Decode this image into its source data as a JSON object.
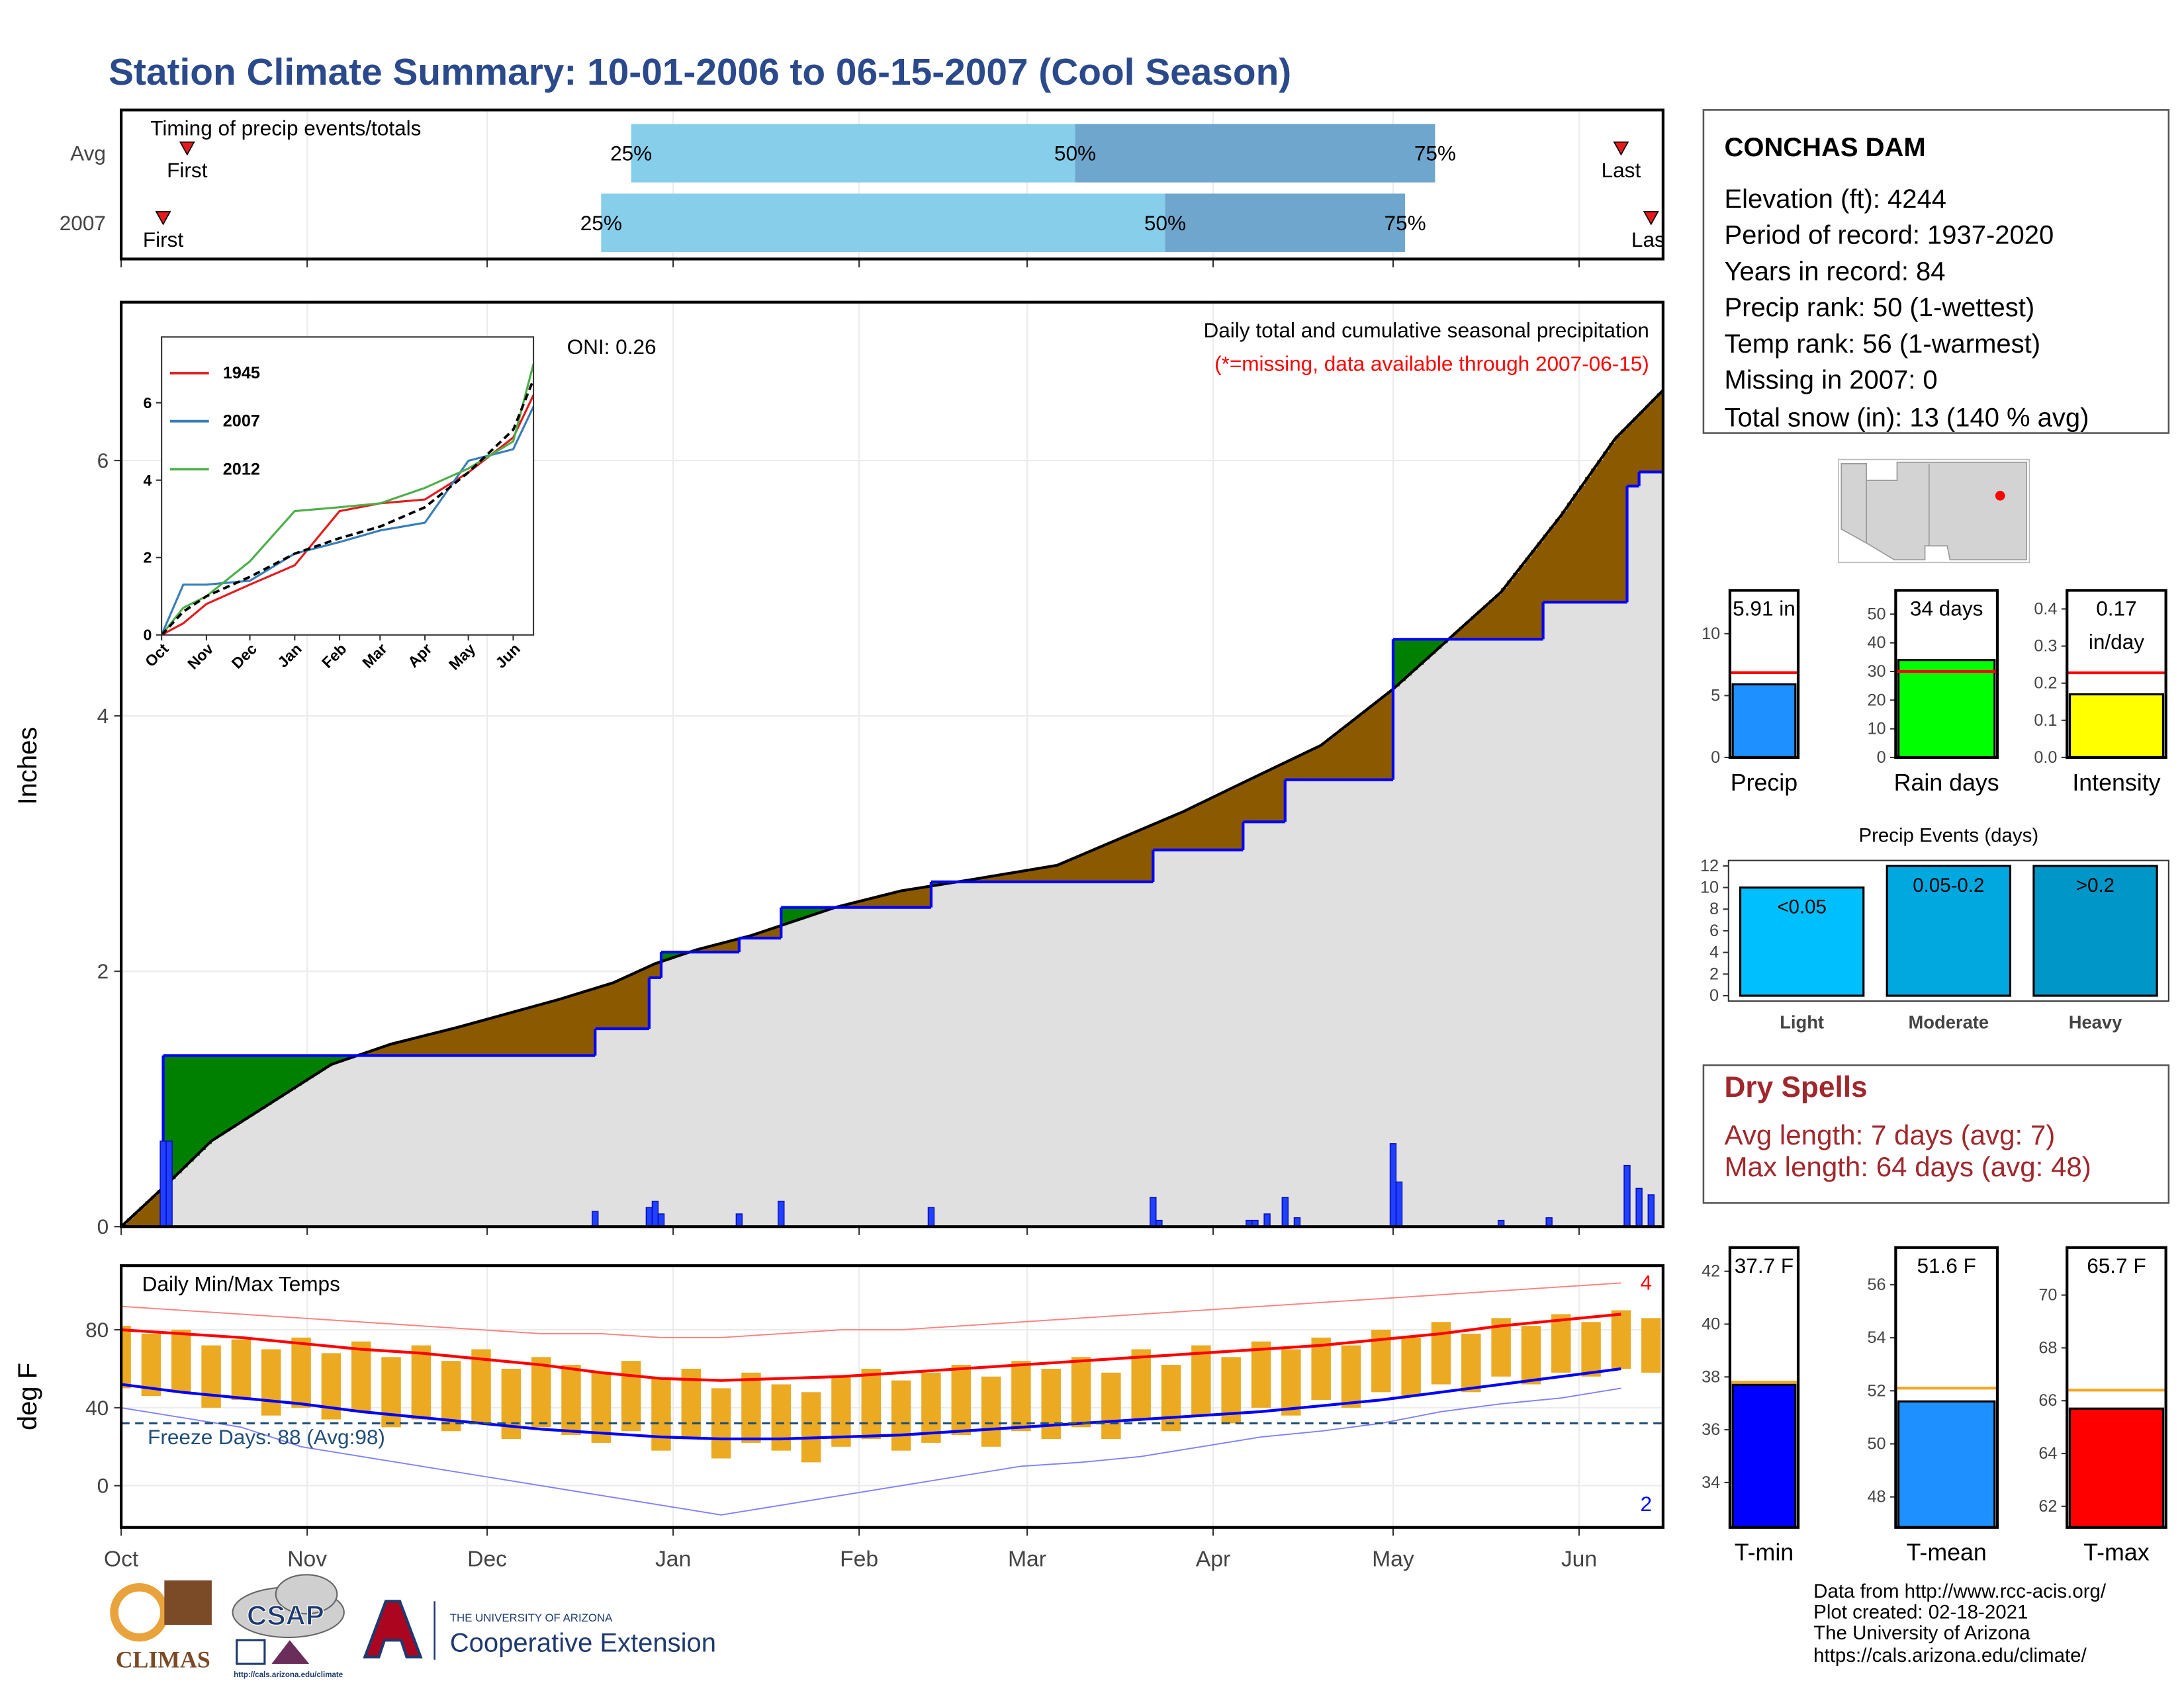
{
  "title": "Station Climate Summary: 10-01-2006 to 06-15-2007 (Cool Season)",
  "chart_data": [
    {
      "type": "timing",
      "title": "Timing of precip events/totals",
      "xlim": [
        0,
        257
      ],
      "categories": [
        "Avg",
        "2007"
      ],
      "first": [
        11,
        7
      ],
      "q25": [
        85,
        80
      ],
      "q50": [
        159,
        174
      ],
      "q75": [
        219,
        214
      ],
      "last": [
        250,
        255
      ],
      "first_label": "First",
      "last_label": "Last",
      "quantile_labels": [
        "25%",
        "50%",
        "75%"
      ],
      "colors": [
        "#87ceeb",
        "#6fa6cd"
      ],
      "marker_color": "#e41a1c"
    },
    {
      "type": "cumulative",
      "title": "Daily total and cumulative seasonal precipitation",
      "subtitle": "(*=missing, data available through 2007-06-15)",
      "y_label": "Inches",
      "annotation": "ONI: 0.26",
      "xlim": [
        0,
        257
      ],
      "ylim": [
        0,
        7.24
      ],
      "yticks": [
        0,
        2,
        4,
        6
      ],
      "grid": true,
      "average": {
        "x": [
          0,
          8,
          15,
          26,
          35,
          45,
          56,
          73,
          82,
          89,
          96,
          105,
          119,
          130,
          142,
          156,
          165,
          177,
          188,
          200,
          212,
          221,
          230,
          240,
          249,
          257
        ],
        "values": [
          0,
          0.35,
          0.67,
          1.0,
          1.27,
          1.43,
          1.56,
          1.78,
          1.91,
          2.06,
          2.17,
          2.28,
          2.5,
          2.63,
          2.72,
          2.83,
          3.01,
          3.25,
          3.5,
          3.77,
          4.21,
          4.59,
          4.97,
          5.57,
          6.17,
          6.55
        ],
        "color": "#000000"
      },
      "season": {
        "x": [
          0,
          7,
          79,
          88,
          90,
          103,
          110,
          135,
          172,
          187,
          194,
          212,
          237,
          251,
          253
        ],
        "values": [
          0,
          1.34,
          1.55,
          1.95,
          2.15,
          2.26,
          2.5,
          2.7,
          2.95,
          3.17,
          3.5,
          4.6,
          4.89,
          5.8,
          5.91
        ],
        "color": "#0000ff"
      },
      "daily": {
        "x": [
          7,
          8,
          79,
          88,
          89,
          90,
          103,
          110,
          135,
          172,
          173,
          188,
          189,
          191,
          194,
          196,
          212,
          213,
          230,
          238,
          251,
          253,
          255
        ],
        "values": [
          0.67,
          0.67,
          0.12,
          0.15,
          0.2,
          0.1,
          0.1,
          0.2,
          0.15,
          0.23,
          0.05,
          0.05,
          0.05,
          0.1,
          0.23,
          0.07,
          0.65,
          0.35,
          0.05,
          0.07,
          0.48,
          0.3,
          0.25
        ],
        "color": "#2040ff"
      },
      "above_color": "#008000",
      "below_color": "#8b5a00",
      "fill_color": "#e0e0e0"
    },
    {
      "type": "line",
      "xlim": [
        0,
        257
      ],
      "ylim": [
        0,
        7.7
      ],
      "yticks": [
        0,
        2,
        4,
        6
      ],
      "xticks": [
        {
          "value": 0,
          "label": "Oct"
        },
        {
          "value": 31,
          "label": "Nov"
        },
        {
          "value": 61,
          "label": "Dec"
        },
        {
          "value": 92,
          "label": "Jan"
        },
        {
          "value": 123,
          "label": "Feb"
        },
        {
          "value": 151,
          "label": "Mar"
        },
        {
          "value": 182,
          "label": "Apr"
        },
        {
          "value": 212,
          "label": "May"
        },
        {
          "value": 243,
          "label": "Jun"
        }
      ],
      "x": [
        0,
        15,
        31,
        61,
        92,
        123,
        151,
        182,
        212,
        243,
        257
      ],
      "series": [
        {
          "name": "1945",
          "color": "#e41a1c",
          "values": [
            0,
            0.3,
            0.8,
            1.3,
            1.8,
            3.2,
            3.4,
            3.5,
            4.2,
            5.1,
            6.2
          ]
        },
        {
          "name": "2007",
          "color": "#377eb8",
          "values": [
            0,
            1.3,
            1.3,
            1.4,
            2.1,
            2.4,
            2.7,
            2.9,
            4.5,
            4.8,
            5.9
          ]
        },
        {
          "name": "2012",
          "color": "#4daf4a",
          "values": [
            0,
            0.7,
            1.0,
            1.9,
            3.2,
            3.3,
            3.4,
            3.8,
            4.3,
            5.0,
            7.0
          ]
        }
      ],
      "average_values": [
        0,
        0.6,
        1.0,
        1.5,
        2.1,
        2.5,
        2.8,
        3.3,
        4.2,
        5.3,
        6.6
      ],
      "average_color": "#000000"
    },
    {
      "type": "temperature",
      "title": "Daily Min/Max Temps",
      "y_label": "deg F",
      "xlim": [
        0,
        257
      ],
      "ylim": [
        -21.4,
        112.9
      ],
      "yticks": [
        0,
        40,
        80
      ],
      "grid": true,
      "xticks": [
        {
          "value": 0,
          "label": "Oct"
        },
        {
          "value": 31,
          "label": "Nov"
        },
        {
          "value": 61,
          "label": "Dec"
        },
        {
          "value": 92,
          "label": "Jan"
        },
        {
          "value": 123,
          "label": "Feb"
        },
        {
          "value": 151,
          "label": "Mar"
        },
        {
          "value": 182,
          "label": "Apr"
        },
        {
          "value": 212,
          "label": "May"
        },
        {
          "value": 243,
          "label": "Jun"
        }
      ],
      "daily": {
        "x": [
          0,
          5,
          10,
          15,
          20,
          25,
          30,
          35,
          40,
          45,
          50,
          55,
          60,
          65,
          70,
          75,
          80,
          85,
          90,
          95,
          100,
          105,
          110,
          115,
          120,
          125,
          130,
          135,
          140,
          145,
          150,
          155,
          160,
          165,
          170,
          175,
          180,
          185,
          190,
          195,
          200,
          205,
          210,
          215,
          220,
          225,
          230,
          235,
          240,
          245,
          250,
          255
        ],
        "tmax": [
          82,
          78,
          80,
          72,
          75,
          70,
          76,
          68,
          74,
          66,
          72,
          64,
          70,
          60,
          66,
          62,
          58,
          64,
          55,
          60,
          50,
          58,
          52,
          48,
          56,
          60,
          54,
          58,
          62,
          56,
          64,
          60,
          66,
          58,
          70,
          62,
          72,
          66,
          74,
          70,
          76,
          72,
          80,
          76,
          84,
          78,
          86,
          82,
          88,
          84,
          90,
          86
        ],
        "tmin": [
          50,
          46,
          48,
          40,
          44,
          36,
          40,
          34,
          38,
          30,
          34,
          28,
          32,
          24,
          30,
          26,
          22,
          28,
          18,
          24,
          14,
          22,
          18,
          12,
          20,
          24,
          18,
          22,
          26,
          20,
          28,
          24,
          30,
          24,
          34,
          28,
          36,
          32,
          40,
          36,
          44,
          40,
          48,
          46,
          52,
          48,
          56,
          52,
          58,
          56,
          60,
          58
        ],
        "color": "#ebaa22"
      },
      "normals": {
        "x": [
          0,
          10,
          20,
          30,
          40,
          50,
          60,
          70,
          80,
          90,
          100,
          110,
          120,
          130,
          140,
          150,
          160,
          170,
          180,
          190,
          200,
          210,
          220,
          230,
          240,
          250
        ],
        "avg_max": [
          80,
          78,
          76,
          73,
          70,
          68,
          65,
          62,
          58,
          55,
          54,
          55,
          56,
          58,
          60,
          62,
          64,
          66,
          68,
          70,
          72,
          75,
          78,
          82,
          85,
          88
        ],
        "avg_min": [
          52,
          48,
          45,
          42,
          38,
          35,
          32,
          29,
          27,
          25,
          24,
          24,
          25,
          26,
          28,
          30,
          32,
          34,
          36,
          38,
          41,
          44,
          48,
          52,
          56,
          60
        ],
        "record_high": [
          92,
          90,
          88,
          86,
          84,
          82,
          80,
          78,
          78,
          76,
          76,
          78,
          80,
          80,
          82,
          84,
          86,
          88,
          90,
          92,
          94,
          96,
          98,
          100,
          102,
          104
        ],
        "record_low": [
          40,
          35,
          30,
          20,
          15,
          10,
          5,
          0,
          -5,
          -10,
          -15,
          -10,
          -5,
          0,
          5,
          10,
          12,
          15,
          20,
          25,
          28,
          32,
          38,
          42,
          45,
          50
        ]
      },
      "avg_max_color": "#ff0000",
      "avg_min_color": "#0000ff",
      "record_high_color": "#ff8080",
      "record_low_color": "#8080ff",
      "freeze_threshold": 32,
      "freeze_label": "Freeze Days: 88 (Avg:98)",
      "freeze_color": "#1f4e79",
      "record_highs": 4,
      "record_lows": 2
    },
    {
      "type": "mini_bar",
      "category": "Precip",
      "value": 5.91,
      "value_label": [
        "5.91 in"
      ],
      "average": 6.85,
      "ylim": [
        0,
        13.5
      ],
      "yticks": [
        0,
        5,
        10
      ],
      "color": "#1e90ff",
      "average_color": "#ff0000"
    },
    {
      "type": "mini_bar",
      "category": "Rain days",
      "value": 34,
      "value_label": [
        "34 days"
      ],
      "average": 30,
      "ylim": [
        0,
        58.3
      ],
      "yticks": [
        0,
        10,
        20,
        30,
        40,
        50
      ],
      "color": "#00ff00",
      "average_color": "#ff0000"
    },
    {
      "type": "mini_bar",
      "category": "Intensity",
      "value": 0.17,
      "value_label": [
        "0.17",
        "in/day"
      ],
      "average": 0.228,
      "ylim": [
        0,
        0.45
      ],
      "yticks": [
        {
          "value": 0,
          "label": "0.0"
        },
        0.1,
        0.2,
        0.3,
        0.4
      ],
      "color": "#ffff00",
      "average_color": "#ff0000"
    },
    {
      "type": "bar",
      "title": "Precip Events (days)",
      "categories": [
        "Light",
        "Moderate",
        "Heavy"
      ],
      "bar_labels": [
        "<0.05",
        "0.05-0.2",
        ">0.2"
      ],
      "values": [
        10,
        12,
        12
      ],
      "colors": [
        "#00bfff",
        "#00a8e0",
        "#0096c8"
      ],
      "ylim": [
        -0.5,
        12.5
      ],
      "yticks": [
        0,
        2,
        4,
        6,
        8,
        10,
        12
      ]
    },
    {
      "type": "mini_bar",
      "category": "T-min",
      "value": 37.7,
      "value_label": [
        "37.7 F"
      ],
      "average": 37.8,
      "ylim": [
        32.3,
        42.9
      ],
      "yticks": [
        34,
        36,
        38,
        40,
        42
      ],
      "color": "#0000ff",
      "average_color": "#f5a623"
    },
    {
      "type": "mini_bar",
      "category": "T-mean",
      "value": 51.6,
      "value_label": [
        "51.6 F"
      ],
      "average": 52.1,
      "ylim": [
        46.85,
        57.4
      ],
      "yticks": [
        48,
        50,
        52,
        54,
        56
      ],
      "color": "#1e90ff",
      "average_color": "#f5a623"
    },
    {
      "type": "mini_bar",
      "category": "T-max",
      "value": 65.7,
      "value_label": [
        "65.7 F"
      ],
      "average": 66.4,
      "ylim": [
        61.2,
        71.8
      ],
      "yticks": [
        62,
        64,
        66,
        68,
        70
      ],
      "color": "#ff0000",
      "average_color": "#f5a623"
    }
  ],
  "station": {
    "name": "CONCHAS DAM",
    "lines": [
      "Elevation (ft): 4244",
      "Period of record: 1937-2020",
      "Years in record: 84",
      "Precip rank: 50 (1-wettest)",
      "Temp rank: 56 (1-warmest)",
      "Missing in 2007: 0",
      "Total snow (in): 13 (140 % avg)"
    ]
  },
  "dry_spells": {
    "title": "Dry Spells",
    "lines": [
      "Avg length: 7 days (avg: 7)",
      "Max length: 64 days (avg: 48)"
    ]
  },
  "logos": {
    "climas": "CLIMAS",
    "csap": "CSAP",
    "csap_url": "http://cals.arizona.edu/climate",
    "ua_small": "THE UNIVERSITY OF ARIZONA",
    "ua_large": "Cooperative Extension"
  },
  "credits": [
    "Data from http://www.rcc-acis.org/",
    "Plot created: 02-18-2021",
    "The University of Arizona",
    "https://cals.arizona.edu/climate/"
  ]
}
